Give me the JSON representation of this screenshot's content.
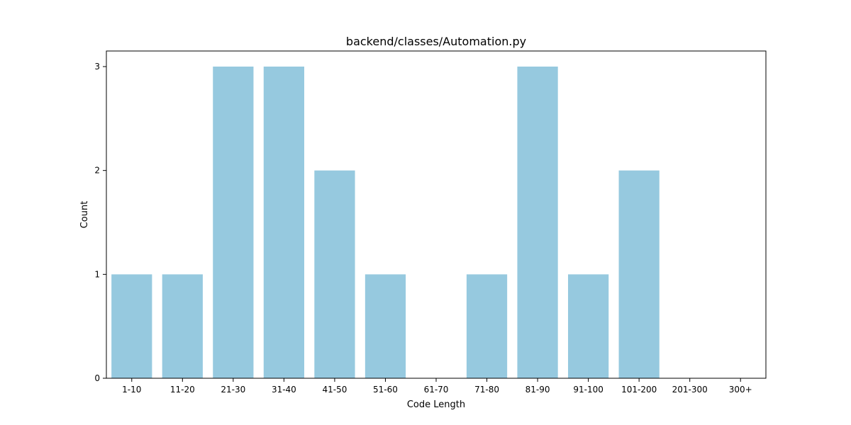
{
  "chart_data": {
    "type": "bar",
    "title": "backend/classes/Automation.py",
    "xlabel": "Code Length",
    "ylabel": "Count",
    "categories": [
      "1-10",
      "11-20",
      "21-30",
      "31-40",
      "41-50",
      "51-60",
      "61-70",
      "71-80",
      "81-90",
      "91-100",
      "101-200",
      "201-300",
      "300+"
    ],
    "values": [
      1,
      1,
      3,
      3,
      2,
      1,
      0,
      1,
      3,
      1,
      2,
      0,
      0
    ],
    "yticks": [
      0,
      1,
      2,
      3
    ],
    "ylim": [
      0,
      3.15
    ],
    "grid": false,
    "legend": "none",
    "bar_color": "#96c9df"
  }
}
